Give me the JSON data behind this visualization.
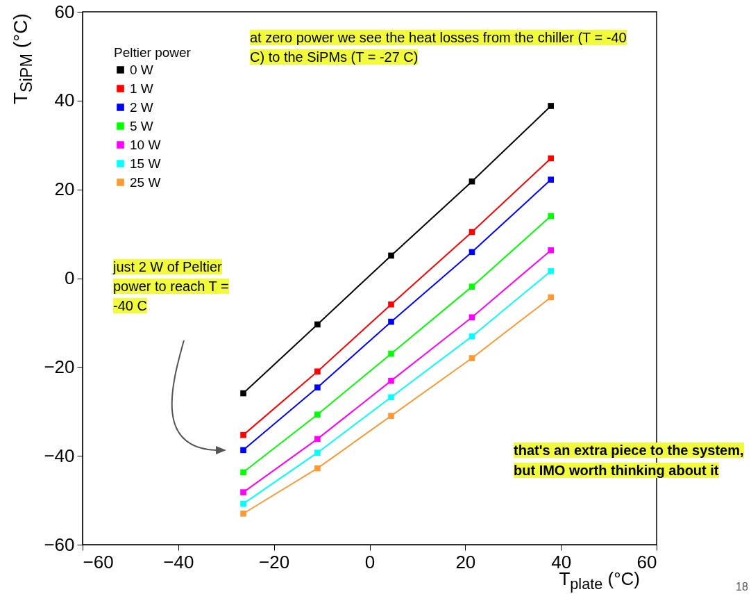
{
  "chart_data": {
    "type": "line",
    "xlabel": "T$_{plate}$ (°C)",
    "ylabel": "T$_{SiPM}$ (°C)",
    "legend_title": "Peltier power",
    "x": [
      -26.4,
      -10.9,
      4.5,
      21.4,
      37.9
    ],
    "series": [
      {
        "name": "0 W",
        "color": "#000000",
        "values": [
          -25.9,
          -10.4,
          5.1,
          21.8,
          38.8
        ]
      },
      {
        "name": "1 W",
        "color": "#ff0000",
        "values": [
          -35.3,
          -21.0,
          -5.9,
          10.4,
          27.0
        ]
      },
      {
        "name": "2 W",
        "color": "#0000ff",
        "values": [
          -38.7,
          -24.6,
          -9.8,
          5.9,
          22.2
        ]
      },
      {
        "name": "5 W",
        "color": "#00ff00",
        "values": [
          -43.7,
          -30.7,
          -17.0,
          -1.9,
          14.0
        ]
      },
      {
        "name": "10 W",
        "color": "#ff00ff",
        "values": [
          -48.2,
          -36.2,
          -23.1,
          -8.8,
          6.3
        ]
      },
      {
        "name": "15 W",
        "color": "#00ffff",
        "values": [
          -50.8,
          -39.3,
          -26.8,
          -13.1,
          1.6
        ]
      },
      {
        "name": "25 W",
        "color": "#ff9933",
        "values": [
          -53.0,
          -42.8,
          -31.0,
          -18.0,
          -4.3
        ]
      }
    ],
    "xlim": [
      -60,
      60
    ],
    "xticks": [
      -60,
      -40,
      -20,
      0,
      20,
      40,
      60
    ],
    "ylim": [
      -60,
      60
    ],
    "yticks": [
      -60,
      -40,
      -20,
      0,
      20,
      40,
      60
    ],
    "grid": false,
    "legend": "top left",
    "marker": "square",
    "line_style": "solid",
    "annotations": [
      "at zero power we see the heat losses from the chiller (T = -40 C) to the SiPMs (T = -27 C)",
      "just 2 W of Peltier power to reach T = -40 C",
      "that's an extra piece to the system, but IMO worth thinking about it",
      "18"
    ]
  }
}
